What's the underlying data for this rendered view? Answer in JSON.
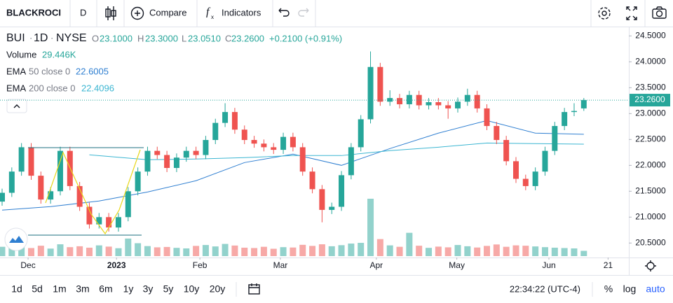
{
  "toolbar": {
    "symbol": "BLACKROCI",
    "interval": "D",
    "compare": "Compare",
    "indicators": "Indicators"
  },
  "chart_data": {
    "type": "candlestick",
    "symbol": "BUI",
    "timeframe": "1D",
    "exchange": "NYSE",
    "ohlc_legend": {
      "o_key": "O",
      "open": "23.1000",
      "h_key": "H",
      "high": "23.3000",
      "l_key": "L",
      "low": "23.0510",
      "c_key": "C",
      "close": "23.2600",
      "change": "+0.2100 (+0.91%)"
    },
    "volume_legend": {
      "name": "Volume",
      "value": "29.446K"
    },
    "up_color": "#26a69a",
    "down_color": "#ef5350",
    "open": [
      21.3,
      21.47,
      21.88,
      22.35,
      21.8,
      21.34,
      21.5,
      22.28,
      21.6,
      21.2,
      20.86,
      21.0,
      20.8,
      21.0,
      21.5,
      21.88,
      22.28,
      22.2,
      21.95,
      22.15,
      22.28,
      22.2,
      22.49,
      22.82,
      23.03,
      22.69,
      22.49,
      22.42,
      22.35,
      22.3,
      22.55,
      22.35,
      21.88,
      21.54,
      21.14,
      21.2,
      21.81,
      22.35,
      22.89,
      23.9,
      23.23,
      23.3,
      23.18,
      23.36,
      23.16,
      23.22,
      23.16,
      23.1,
      23.23,
      23.36,
      23.1,
      22.76,
      22.49,
      22.08,
      21.74,
      21.6,
      21.88,
      22.28,
      22.76,
      23.03,
      23.1
    ],
    "high": [
      21.55,
      21.96,
      22.43,
      22.43,
      21.88,
      21.58,
      22.36,
      22.36,
      21.68,
      21.28,
      21.08,
      21.08,
      21.08,
      21.58,
      21.96,
      22.36,
      22.36,
      22.28,
      22.23,
      22.36,
      22.36,
      22.57,
      22.9,
      23.2,
      23.11,
      22.77,
      22.57,
      22.5,
      22.43,
      22.63,
      22.63,
      22.43,
      21.96,
      21.62,
      21.28,
      21.89,
      22.43,
      22.97,
      24.2,
      23.98,
      23.45,
      23.38,
      23.44,
      23.44,
      23.3,
      23.3,
      23.24,
      23.31,
      23.48,
      23.44,
      23.18,
      22.84,
      22.57,
      22.16,
      21.82,
      21.96,
      22.36,
      22.84,
      23.11,
      23.2,
      23.3
    ],
    "low": [
      21.22,
      21.39,
      21.8,
      21.72,
      21.26,
      21.26,
      21.42,
      21.52,
      21.12,
      20.78,
      20.78,
      20.72,
      20.72,
      20.92,
      21.42,
      21.8,
      22.12,
      21.87,
      21.87,
      22.07,
      22.12,
      22.12,
      22.41,
      22.74,
      22.61,
      22.41,
      22.34,
      22.27,
      22.22,
      22.22,
      22.27,
      21.8,
      21.46,
      20.9,
      21.06,
      21.12,
      21.73,
      22.27,
      22.81,
      23.15,
      23.15,
      23.1,
      23.1,
      23.08,
      23.08,
      23.08,
      22.9,
      23.02,
      23.15,
      23.02,
      22.68,
      22.41,
      22.0,
      21.66,
      21.52,
      21.52,
      21.8,
      22.2,
      22.68,
      22.95,
      23.051
    ],
    "close": [
      21.47,
      21.88,
      22.35,
      21.8,
      21.34,
      21.5,
      22.28,
      21.6,
      21.2,
      20.86,
      21.0,
      20.8,
      21.0,
      21.5,
      21.88,
      22.28,
      22.2,
      21.95,
      22.15,
      22.28,
      22.2,
      22.49,
      22.82,
      23.03,
      22.69,
      22.49,
      22.42,
      22.35,
      22.3,
      22.55,
      22.35,
      21.88,
      21.54,
      21.14,
      21.2,
      21.81,
      22.35,
      22.89,
      23.9,
      23.23,
      23.3,
      23.18,
      23.36,
      23.16,
      23.22,
      23.16,
      23.1,
      23.23,
      23.36,
      23.1,
      22.76,
      22.49,
      22.08,
      21.74,
      21.6,
      21.88,
      22.28,
      22.76,
      23.03,
      23.05,
      23.26
    ],
    "volume": [
      52000,
      48000,
      61000,
      45000,
      58000,
      42000,
      66000,
      50000,
      55000,
      47000,
      60000,
      53000,
      44000,
      98000,
      72000,
      56000,
      49000,
      51000,
      46000,
      43000,
      57000,
      62000,
      54000,
      68000,
      59000,
      47000,
      45000,
      52000,
      41000,
      50000,
      48000,
      63000,
      57000,
      66000,
      55000,
      61000,
      70000,
      74000,
      320000,
      95000,
      60000,
      52000,
      130000,
      58000,
      46000,
      53000,
      49000,
      62000,
      55000,
      48000,
      57000,
      65000,
      52000,
      60000,
      58000,
      54000,
      50000,
      47000,
      45000,
      43000,
      29446
    ],
    "indicators": [
      {
        "name": "EMA",
        "params": "50 close 0",
        "last": "22.6005",
        "color": "#2f7fd1",
        "index": [
          0,
          5,
          10,
          15,
          20,
          25,
          30,
          35,
          40,
          45,
          50,
          55,
          60
        ],
        "values": [
          21.135,
          21.203,
          21.311,
          21.486,
          21.703,
          22.054,
          22.216,
          22.0,
          22.324,
          22.622,
          22.865,
          22.622,
          22.6005
        ]
      },
      {
        "name": "EMA",
        "params": "200 close 0",
        "last": "22.4096",
        "color": "#3cb6d2",
        "index": [
          9,
          15,
          20,
          25,
          30,
          35,
          40,
          45,
          50,
          55,
          60
        ],
        "values": [
          22.203,
          22.108,
          22.122,
          22.149,
          22.189,
          22.189,
          22.284,
          22.351,
          22.432,
          22.419,
          22.4096
        ]
      }
    ],
    "xticks": [
      {
        "value": 2.68,
        "label": "Dec"
      },
      {
        "value": 11.8,
        "label": "2023"
      },
      {
        "value": 20.4,
        "label": "Feb"
      },
      {
        "value": 28.7,
        "label": "Mar"
      },
      {
        "value": 38.6,
        "label": "Apr"
      },
      {
        "value": 46.9,
        "label": "May"
      },
      {
        "value": 56.4,
        "label": "Jun"
      },
      {
        "value": 62.5,
        "label": "21"
      }
    ],
    "ylim": [
      20.22,
      24.68
    ],
    "yticks": [
      {
        "value": 24.5,
        "label": "24.5000"
      },
      {
        "value": 24,
        "label": "24.0000"
      },
      {
        "value": 23.5,
        "label": "23.5000"
      },
      {
        "value": 23,
        "label": "23.0000"
      },
      {
        "value": 22.5,
        "label": "22.5000"
      },
      {
        "value": 22,
        "label": "22.0000"
      },
      {
        "value": 21.5,
        "label": "21.5000"
      },
      {
        "value": 21,
        "label": "21.0000"
      },
      {
        "value": 20.5,
        "label": "20.5000"
      }
    ],
    "last_price": {
      "value": 23.26,
      "label": "23.2600"
    }
  },
  "bottom_bar": {
    "ranges": [
      "1d",
      "5d",
      "1m",
      "3m",
      "6m",
      "1y",
      "3y",
      "5y",
      "10y",
      "20y"
    ],
    "clock": "22:34:22 (UTC-4)",
    "percent": "%",
    "log": "log",
    "auto": "auto"
  }
}
